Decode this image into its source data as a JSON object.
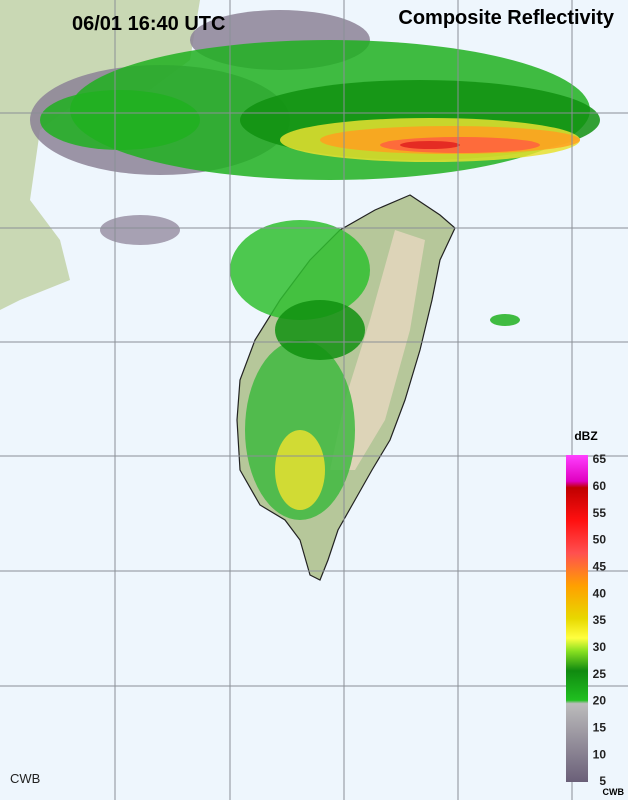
{
  "header": {
    "time": "06/01 16:40 UTC",
    "product": "Composite Reflectivity"
  },
  "legend": {
    "unit": "dBZ",
    "ticks": [
      65,
      60,
      55,
      50,
      45,
      40,
      35,
      30,
      25,
      20,
      15,
      10,
      5
    ]
  },
  "footer": {
    "left": "CWB",
    "right": "CWB"
  }
}
